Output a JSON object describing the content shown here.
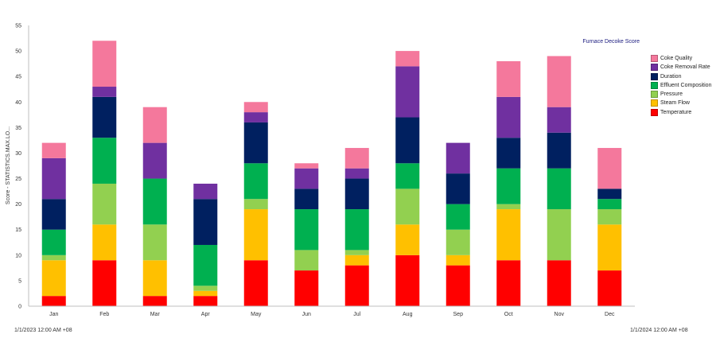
{
  "chart_data": {
    "type": "bar",
    "stacked": true,
    "title": "Furnace Decoke Score",
    "ylabel": "Score - STATISTICS.MAX.LO...",
    "xlabel": "",
    "ylim": [
      0,
      55
    ],
    "yticks": [
      0,
      5,
      10,
      15,
      20,
      25,
      30,
      35,
      40,
      45,
      50,
      55
    ],
    "grid": false,
    "legend_position": "right",
    "categories": [
      "Jan",
      "Feb",
      "Mar",
      "Apr",
      "May",
      "Jun",
      "Jul",
      "Aug",
      "Sep",
      "Oct",
      "Nov",
      "Dec"
    ],
    "series": [
      {
        "name": "Temperature",
        "color": "#ff0000",
        "values": [
          2,
          9,
          2,
          2,
          9,
          7,
          8,
          10,
          8,
          9,
          9,
          7
        ]
      },
      {
        "name": "Steam Flow",
        "color": "#ffc000",
        "values": [
          7,
          7,
          7,
          1,
          10,
          0,
          2,
          6,
          2,
          10,
          0,
          9
        ]
      },
      {
        "name": "Pressure",
        "color": "#92d050",
        "values": [
          1,
          8,
          7,
          1,
          2,
          4,
          1,
          7,
          5,
          1,
          10,
          3
        ]
      },
      {
        "name": "Effluent Composition",
        "color": "#00b050",
        "values": [
          5,
          9,
          9,
          8,
          7,
          8,
          8,
          5,
          5,
          7,
          8,
          2
        ]
      },
      {
        "name": "Duration",
        "color": "#002060",
        "values": [
          6,
          8,
          0,
          9,
          8,
          4,
          6,
          9,
          6,
          6,
          7,
          2
        ]
      },
      {
        "name": "Coke Removal Rate",
        "color": "#7030a0",
        "values": [
          8,
          2,
          7,
          3,
          2,
          4,
          2,
          10,
          6,
          8,
          5,
          0
        ]
      },
      {
        "name": "Coke Quality",
        "color": "#f4789c",
        "values": [
          3,
          9,
          7,
          0,
          2,
          1,
          4,
          3,
          0,
          7,
          10,
          8
        ]
      }
    ],
    "legend_order": [
      "Coke Quality",
      "Coke Removal Rate",
      "Duration",
      "Effluent Composition",
      "Pressure",
      "Steam Flow",
      "Temperature"
    ]
  },
  "footer": {
    "start": "1/1/2023 12:00 AM  +08",
    "end": "1/1/2024 12:00 AM  +08"
  }
}
